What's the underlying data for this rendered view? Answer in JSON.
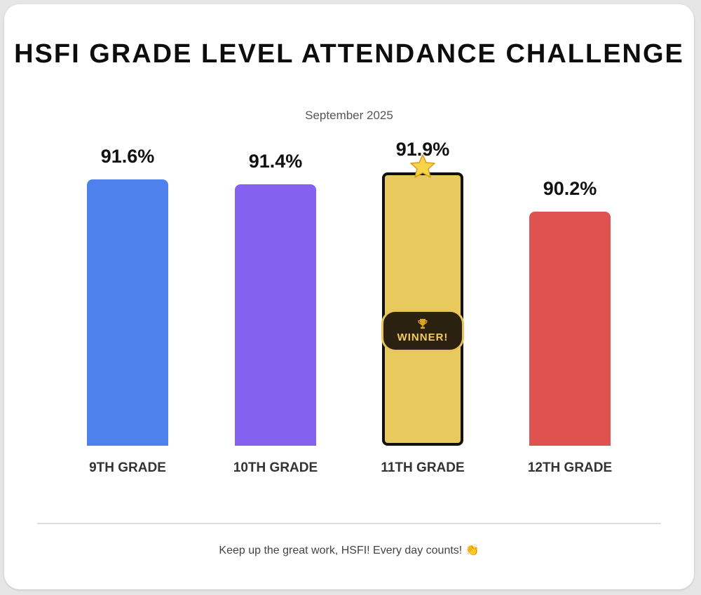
{
  "title": "HSFI GRADE LEVEL ATTENDANCE CHALLENGE",
  "subtitle": "September 2025",
  "chart_data": {
    "type": "bar",
    "title": "HSFI GRADE LEVEL ATTENDANCE CHALLENGE",
    "subtitle": "September 2025",
    "categories": [
      "9TH GRADE",
      "10TH GRADE",
      "11TH GRADE",
      "12TH GRADE"
    ],
    "values": [
      91.6,
      91.4,
      91.9,
      90.2
    ],
    "value_labels": [
      "91.6%",
      "91.4%",
      "91.9%",
      "90.2%"
    ],
    "colors": [
      "#4f81ec",
      "#8461ee",
      "#e8c95e",
      "#de524f"
    ],
    "winner_index": 2,
    "winner_badge": "WINNER!",
    "winner_icons": [
      "star-icon",
      "trophy-icon"
    ],
    "ylim": [
      80,
      92.4
    ],
    "grid": false,
    "legend": "none"
  },
  "footer": "Keep up the great work, HSFI! Every day counts! 👏"
}
